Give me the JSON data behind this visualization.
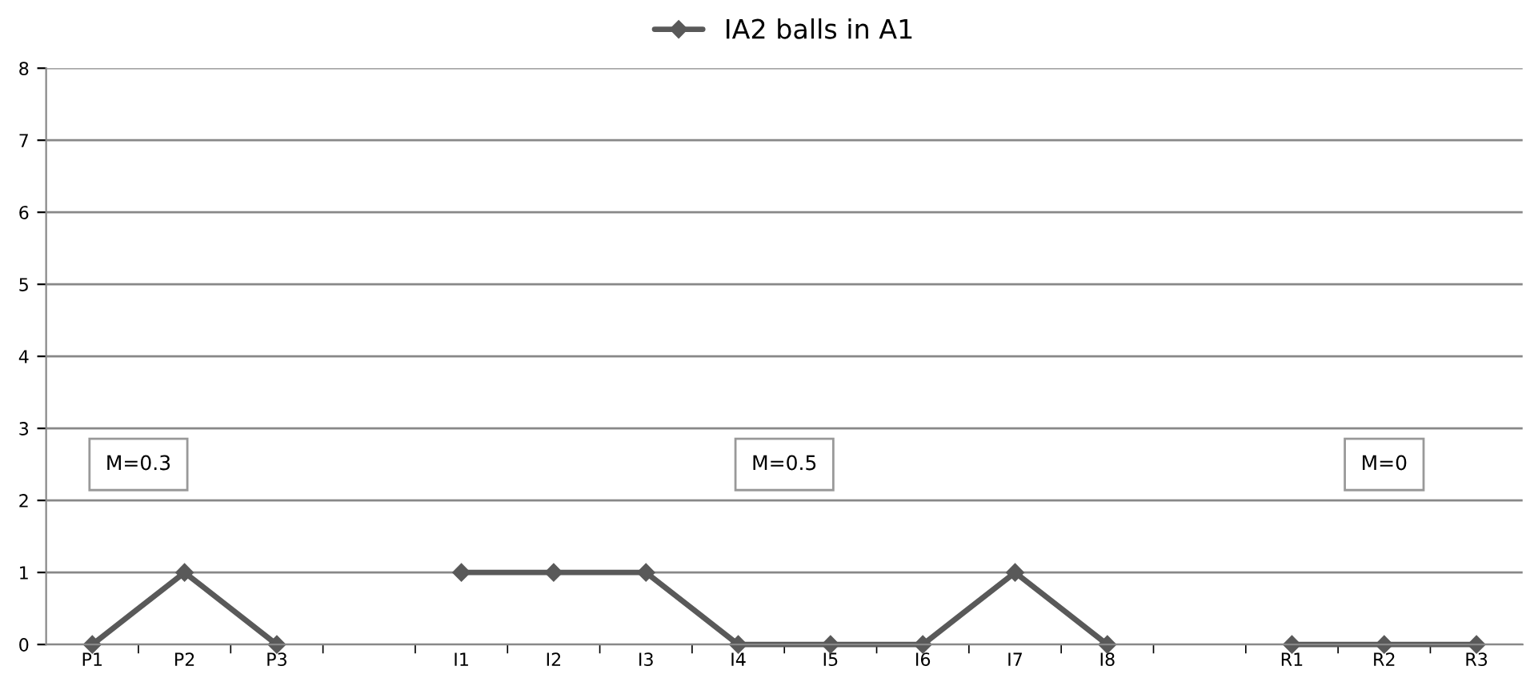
{
  "chart_data": {
    "type": "line",
    "categories": [
      "P1",
      "P2",
      "P3",
      null,
      "I1",
      "I2",
      "I3",
      "I4",
      "I5",
      "I6",
      "I7",
      "I8",
      null,
      "R1",
      "R2",
      "R3"
    ],
    "series": [
      {
        "name": "IA2 balls in A1",
        "color": "#595959",
        "values": [
          0,
          1,
          0,
          null,
          1,
          1,
          1,
          0,
          0,
          0,
          1,
          0,
          null,
          0,
          0,
          0
        ]
      }
    ],
    "ylim": [
      0,
      8
    ],
    "yticks": [
      0,
      1,
      2,
      3,
      4,
      5,
      6,
      7,
      8
    ],
    "grid": "y",
    "legend": "top",
    "marker": "diamond",
    "line_style": "solid",
    "annotations": [
      "M=0.3",
      "M=0.5",
      "M=0"
    ]
  }
}
